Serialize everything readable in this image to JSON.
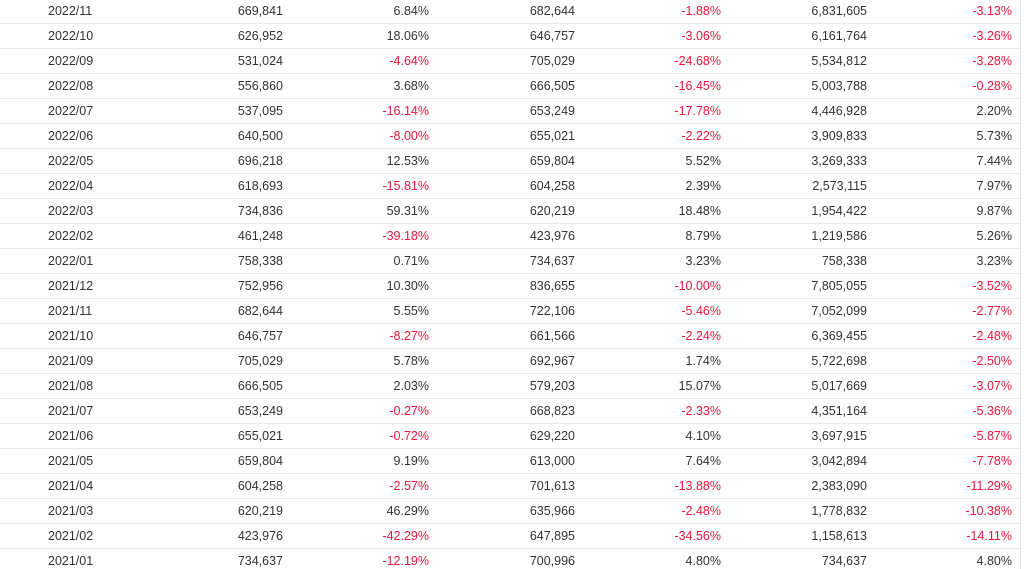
{
  "colors": {
    "text": "#333333",
    "negative": "#e8173d",
    "row_border": "#e8e8e8"
  },
  "rows": [
    {
      "month": "2022/11",
      "v1": "669,841",
      "p1": "6.84%",
      "v2": "682,644",
      "p2": "-1.88%",
      "v3": "6,831,605",
      "p3": "-3.13%"
    },
    {
      "month": "2022/10",
      "v1": "626,952",
      "p1": "18.06%",
      "v2": "646,757",
      "p2": "-3.06%",
      "v3": "6,161,764",
      "p3": "-3.26%"
    },
    {
      "month": "2022/09",
      "v1": "531,024",
      "p1": "-4.64%",
      "v2": "705,029",
      "p2": "-24.68%",
      "v3": "5,534,812",
      "p3": "-3.28%"
    },
    {
      "month": "2022/08",
      "v1": "556,860",
      "p1": "3.68%",
      "v2": "666,505",
      "p2": "-16.45%",
      "v3": "5,003,788",
      "p3": "-0.28%"
    },
    {
      "month": "2022/07",
      "v1": "537,095",
      "p1": "-16.14%",
      "v2": "653,249",
      "p2": "-17.78%",
      "v3": "4,446,928",
      "p3": "2.20%"
    },
    {
      "month": "2022/06",
      "v1": "640,500",
      "p1": "-8.00%",
      "v2": "655,021",
      "p2": "-2.22%",
      "v3": "3,909,833",
      "p3": "5.73%"
    },
    {
      "month": "2022/05",
      "v1": "696,218",
      "p1": "12.53%",
      "v2": "659,804",
      "p2": "5.52%",
      "v3": "3,269,333",
      "p3": "7.44%"
    },
    {
      "month": "2022/04",
      "v1": "618,693",
      "p1": "-15.81%",
      "v2": "604,258",
      "p2": "2.39%",
      "v3": "2,573,115",
      "p3": "7.97%"
    },
    {
      "month": "2022/03",
      "v1": "734,836",
      "p1": "59.31%",
      "v2": "620,219",
      "p2": "18.48%",
      "v3": "1,954,422",
      "p3": "9.87%"
    },
    {
      "month": "2022/02",
      "v1": "461,248",
      "p1": "-39.18%",
      "v2": "423,976",
      "p2": "8.79%",
      "v3": "1,219,586",
      "p3": "5.26%"
    },
    {
      "month": "2022/01",
      "v1": "758,338",
      "p1": "0.71%",
      "v2": "734,637",
      "p2": "3.23%",
      "v3": "758,338",
      "p3": "3.23%"
    },
    {
      "month": "2021/12",
      "v1": "752,956",
      "p1": "10.30%",
      "v2": "836,655",
      "p2": "-10.00%",
      "v3": "7,805,055",
      "p3": "-3.52%"
    },
    {
      "month": "2021/11",
      "v1": "682,644",
      "p1": "5.55%",
      "v2": "722,106",
      "p2": "-5.46%",
      "v3": "7,052,099",
      "p3": "-2.77%"
    },
    {
      "month": "2021/10",
      "v1": "646,757",
      "p1": "-8.27%",
      "v2": "661,566",
      "p2": "-2.24%",
      "v3": "6,369,455",
      "p3": "-2.48%"
    },
    {
      "month": "2021/09",
      "v1": "705,029",
      "p1": "5.78%",
      "v2": "692,967",
      "p2": "1.74%",
      "v3": "5,722,698",
      "p3": "-2.50%"
    },
    {
      "month": "2021/08",
      "v1": "666,505",
      "p1": "2.03%",
      "v2": "579,203",
      "p2": "15.07%",
      "v3": "5,017,669",
      "p3": "-3.07%"
    },
    {
      "month": "2021/07",
      "v1": "653,249",
      "p1": "-0.27%",
      "v2": "668,823",
      "p2": "-2.33%",
      "v3": "4,351,164",
      "p3": "-5.36%"
    },
    {
      "month": "2021/06",
      "v1": "655,021",
      "p1": "-0.72%",
      "v2": "629,220",
      "p2": "4.10%",
      "v3": "3,697,915",
      "p3": "-5.87%"
    },
    {
      "month": "2021/05",
      "v1": "659,804",
      "p1": "9.19%",
      "v2": "613,000",
      "p2": "7.64%",
      "v3": "3,042,894",
      "p3": "-7.78%"
    },
    {
      "month": "2021/04",
      "v1": "604,258",
      "p1": "-2.57%",
      "v2": "701,613",
      "p2": "-13.88%",
      "v3": "2,383,090",
      "p3": "-11.29%"
    },
    {
      "month": "2021/03",
      "v1": "620,219",
      "p1": "46.29%",
      "v2": "635,966",
      "p2": "-2.48%",
      "v3": "1,778,832",
      "p3": "-10.38%"
    },
    {
      "month": "2021/02",
      "v1": "423,976",
      "p1": "-42.29%",
      "v2": "647,895",
      "p2": "-34.56%",
      "v3": "1,158,613",
      "p3": "-14.11%"
    },
    {
      "month": "2021/01",
      "v1": "734,637",
      "p1": "-12.19%",
      "v2": "700,996",
      "p2": "4.80%",
      "v3": "734,637",
      "p3": "4.80%"
    }
  ]
}
